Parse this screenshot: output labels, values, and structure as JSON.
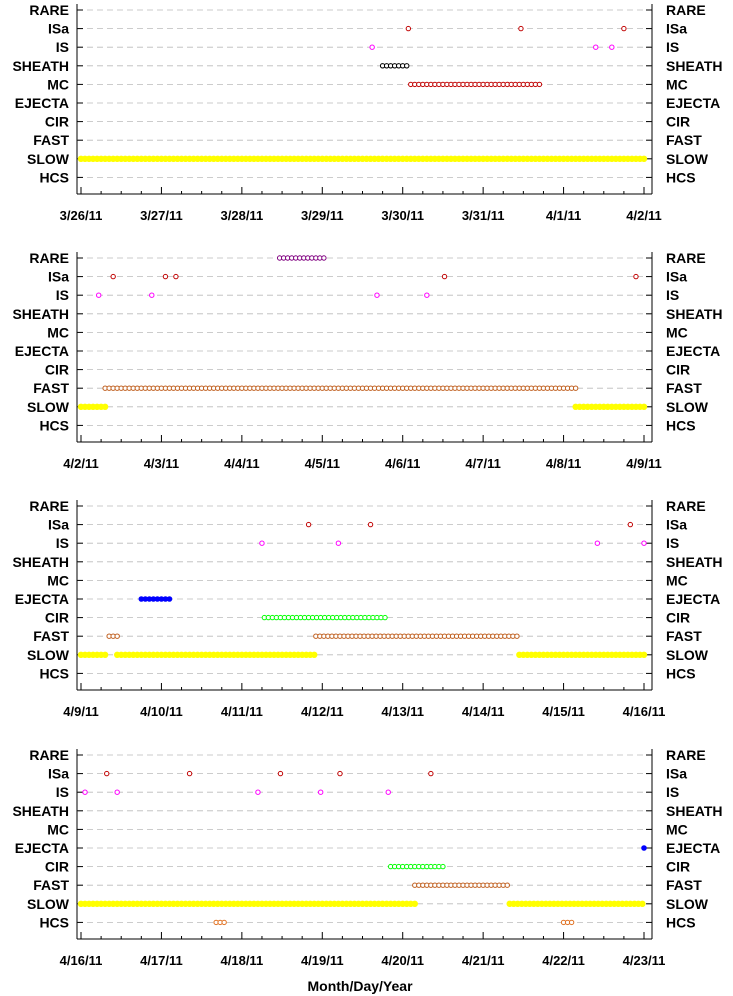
{
  "chart_data": {
    "type": "scatter",
    "xlabel": "Month/Day/Year",
    "categories": [
      "RARE",
      "ISa",
      "IS",
      "SHEATH",
      "MC",
      "EJECTA",
      "CIR",
      "FAST",
      "SLOW",
      "HCS"
    ],
    "colors": {
      "SLOW": "#ffff00",
      "FAST": "#c06020",
      "CIR": "#00ff00",
      "EJECTA": "#0000ff",
      "MC": "#c00000",
      "SHEATH": "#000000",
      "IS": "#ff00ff",
      "ISa": "#c00000",
      "RARE": "#800080",
      "HCS": "#e07020"
    },
    "panels": [
      {
        "ticks": [
          "3/26/11",
          "3/27/11",
          "3/28/11",
          "3/29/11",
          "3/30/11",
          "3/31/11",
          "4/1/11",
          "4/2/11"
        ],
        "xlim": [
          0,
          7
        ],
        "series": [
          {
            "name": "SLOW",
            "segments": [
              [
                0,
                7
              ]
            ]
          },
          {
            "name": "MC",
            "segments": [
              [
                4.1,
                5.7
              ]
            ]
          },
          {
            "name": "SHEATH",
            "segments": [
              [
                3.75,
                4.05
              ]
            ]
          },
          {
            "name": "ISa",
            "points": [
              4.07,
              5.47,
              6.75
            ]
          },
          {
            "name": "IS",
            "points": [
              3.62,
              6.4,
              6.6
            ]
          }
        ]
      },
      {
        "ticks": [
          "4/2/11",
          "4/3/11",
          "4/4/11",
          "4/5/11",
          "4/6/11",
          "4/7/11",
          "4/8/11",
          "4/9/11"
        ],
        "xlim": [
          0,
          7
        ],
        "series": [
          {
            "name": "SLOW",
            "segments": [
              [
                0,
                0.3
              ],
              [
                6.15,
                7
              ]
            ]
          },
          {
            "name": "FAST",
            "segments": [
              [
                0.3,
                6.15
              ]
            ]
          },
          {
            "name": "RARE",
            "segments": [
              [
                2.47,
                3.03
              ]
            ]
          },
          {
            "name": "ISa",
            "points": [
              0.4,
              1.05,
              1.18,
              4.52,
              6.9
            ]
          },
          {
            "name": "IS",
            "points": [
              0.22,
              0.88,
              3.68,
              4.3
            ]
          }
        ]
      },
      {
        "ticks": [
          "4/9/11",
          "4/10/11",
          "4/11/11",
          "4/12/11",
          "4/13/11",
          "4/14/11",
          "4/15/11",
          "4/16/11"
        ],
        "xlim": [
          0,
          7
        ],
        "series": [
          {
            "name": "SLOW",
            "segments": [
              [
                0,
                0.32
              ],
              [
                0.45,
                2.9
              ],
              [
                5.45,
                7
              ]
            ]
          },
          {
            "name": "FAST",
            "segments": [
              [
                0.35,
                0.45
              ],
              [
                2.92,
                5.43
              ]
            ]
          },
          {
            "name": "CIR",
            "segments": [
              [
                2.28,
                3.8
              ]
            ]
          },
          {
            "name": "EJECTA",
            "segments": [
              [
                0.75,
                1.12
              ]
            ]
          },
          {
            "name": "ISa",
            "points": [
              2.83,
              3.6,
              6.83
            ]
          },
          {
            "name": "IS",
            "points": [
              2.25,
              3.2,
              6.42,
              7
            ]
          }
        ]
      },
      {
        "ticks": [
          "4/16/11",
          "4/17/11",
          "4/18/11",
          "4/19/11",
          "4/20/11",
          "4/21/11",
          "4/22/11",
          "4/23/11"
        ],
        "xlim": [
          0,
          7
        ],
        "series": [
          {
            "name": "SLOW",
            "segments": [
              [
                0,
                4.15
              ],
              [
                5.33,
                7
              ]
            ]
          },
          {
            "name": "FAST",
            "segments": [
              [
                4.15,
                5.33
              ]
            ]
          },
          {
            "name": "CIR",
            "segments": [
              [
                3.85,
                4.52
              ]
            ]
          },
          {
            "name": "EJECTA",
            "points": [
              7
            ]
          },
          {
            "name": "HCS",
            "segments": [
              [
                1.68,
                1.82
              ],
              [
                6.0,
                6.1
              ]
            ]
          },
          {
            "name": "ISa",
            "points": [
              0.32,
              1.35,
              2.48,
              3.22,
              4.35
            ]
          },
          {
            "name": "IS",
            "points": [
              0.05,
              0.45,
              2.2,
              2.98,
              3.82
            ]
          }
        ]
      }
    ]
  }
}
